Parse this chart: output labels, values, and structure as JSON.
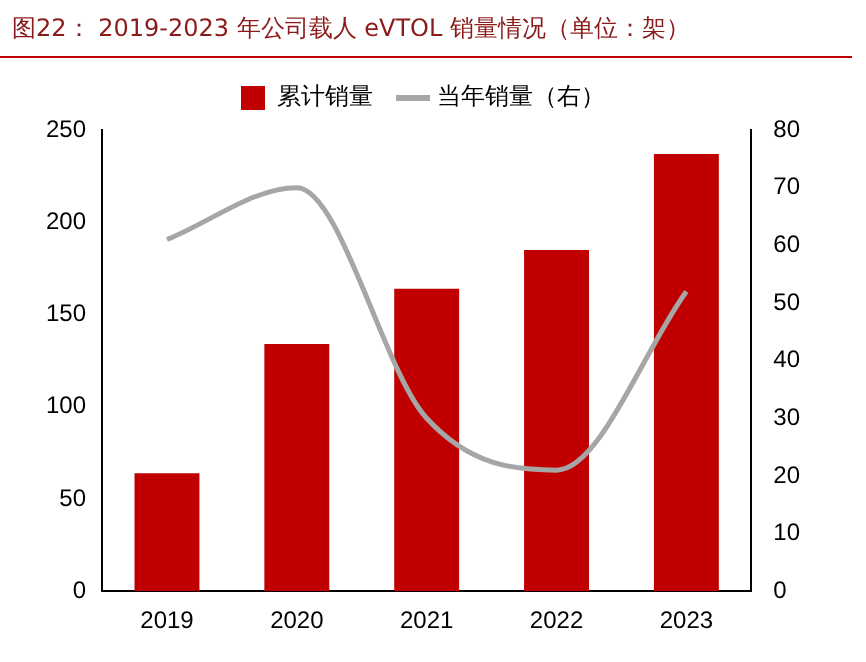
{
  "chart_data": {
    "type": "bar",
    "title": "图22： 2019-2023 年公司载人 eVTOL 销量情况（单位：架）",
    "categories": [
      "2019",
      "2020",
      "2021",
      "2022",
      "2023"
    ],
    "series": [
      {
        "name": "累计销量",
        "color": "#c00000",
        "values": [
          64,
          134,
          164,
          185,
          237
        ]
      },
      {
        "name": "当年销量（右）",
        "type": "line",
        "axis": "y2",
        "color": "#a6a6a6",
        "values": [
          61,
          70,
          30,
          21,
          52
        ]
      }
    ],
    "ylim": [
      0,
      250
    ],
    "yticks": [
      0,
      50,
      100,
      150,
      200,
      250
    ],
    "y2lim": [
      0,
      80
    ],
    "y2ticks": [
      0,
      10,
      20,
      30,
      40,
      50,
      60,
      70,
      80
    ],
    "grid": false,
    "legend": "top",
    "marker": "none",
    "line_style": "solid"
  }
}
